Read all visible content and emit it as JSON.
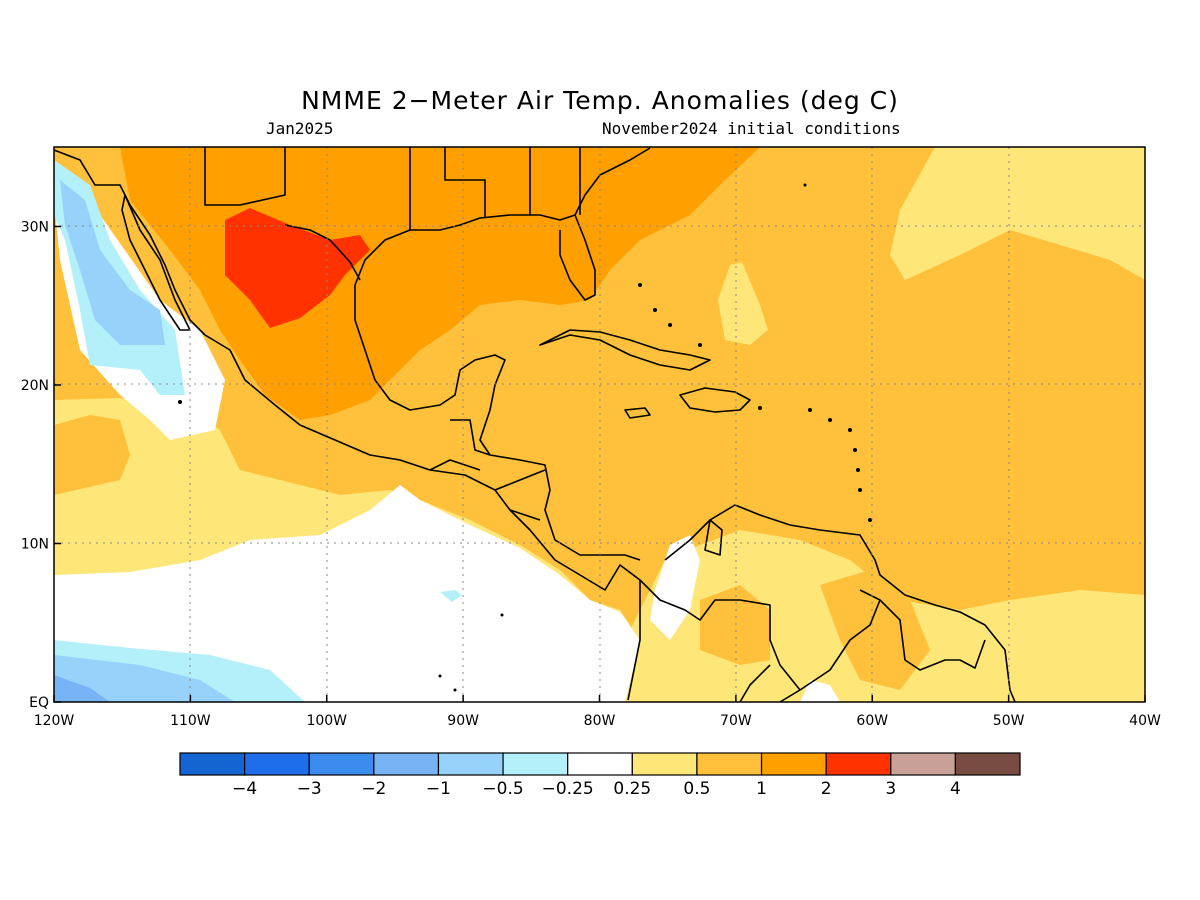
{
  "title": "NMME 2−Meter Air Temp. Anomalies (deg C)",
  "subtitle_left": "Jan2025",
  "subtitle_right": "November2024 initial conditions",
  "map": {
    "lon_labels": [
      "120W",
      "110W",
      "100W",
      "90W",
      "80W",
      "70W",
      "60W",
      "50W",
      "40W"
    ],
    "lat_labels": [
      "EQ",
      "10N",
      "20N",
      "30N"
    ]
  },
  "legend": {
    "labels": [
      "−4",
      "−3",
      "−2",
      "−1",
      "−0.5",
      "−0.25",
      "0.25",
      "0.5",
      "1",
      "2",
      "3",
      "4"
    ],
    "colors": [
      "#1464d2",
      "#1e6eeb",
      "#3c8cf0",
      "#78b4f5",
      "#96d2fa",
      "#b4f0fa",
      "#ffffff",
      "#ffe678",
      "#ffc03c",
      "#ffa000",
      "#ff3200",
      "#c8a098",
      "#784b42"
    ]
  },
  "colors": {
    "c_neg05": "#96d2fa",
    "c_neg025": "#b4f0fa",
    "c_neutral": "#ffffff",
    "c_025": "#ffe678",
    "c_05": "#ffc03c",
    "c_1": "#ffa000",
    "c_2": "#ff3200"
  }
}
